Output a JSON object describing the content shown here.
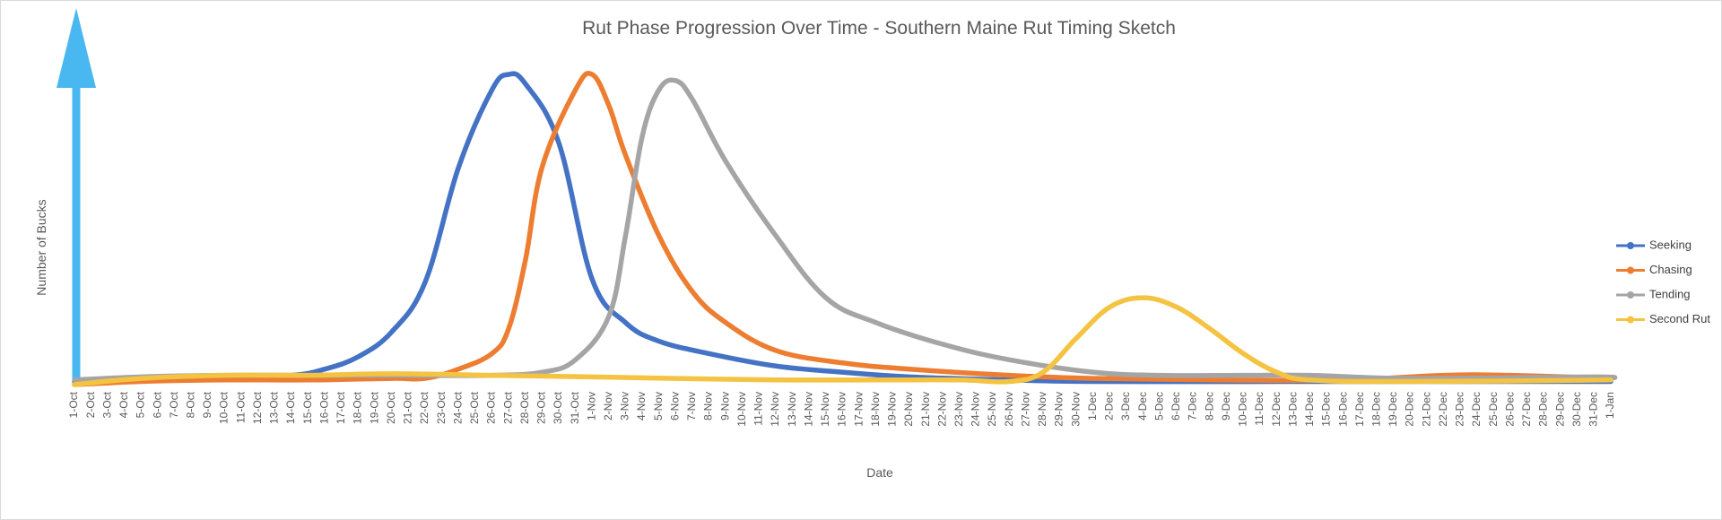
{
  "chart_data": {
    "type": "line",
    "title": "Rut Phase Progression Over Time - Southern Maine Rut Timing Sketch",
    "xlabel": "Date",
    "ylabel": "Number of Bucks",
    "y_axis": "no numeric ticks; drawn as an upward arrow",
    "legend_position": "right",
    "grid": false,
    "x_tick_labels": [
      "1-Oct",
      "2-Oct",
      "3-Oct",
      "4-Oct",
      "5-Oct",
      "6-Oct",
      "7-Oct",
      "8-Oct",
      "9-Oct",
      "10-Oct",
      "11-Oct",
      "12-Oct",
      "13-Oct",
      "14-Oct",
      "15-Oct",
      "16-Oct",
      "17-Oct",
      "18-Oct",
      "19-Oct",
      "20-Oct",
      "21-Oct",
      "22-Oct",
      "23-Oct",
      "24-Oct",
      "25-Oct",
      "26-Oct",
      "27-Oct",
      "28-Oct",
      "29-Oct",
      "30-Oct",
      "31-Oct",
      "1-Nov",
      "2-Nov",
      "3-Nov",
      "4-Nov",
      "5-Nov",
      "6-Nov",
      "7-Nov",
      "8-Nov",
      "9-Nov",
      "10-Nov",
      "11-Nov",
      "12-Nov",
      "13-Nov",
      "14-Nov",
      "15-Nov",
      "16-Nov",
      "17-Nov",
      "18-Nov",
      "19-Nov",
      "20-Nov",
      "21-Nov",
      "22-Nov",
      "23-Nov",
      "24-Nov",
      "25-Nov",
      "26-Nov",
      "27-Nov",
      "28-Nov",
      "29-Nov",
      "30-Nov",
      "1-Dec",
      "2-Dec",
      "3-Dec",
      "4-Dec",
      "5-Dec",
      "6-Dec",
      "7-Dec",
      "8-Dec",
      "9-Dec",
      "10-Dec",
      "11-Dec",
      "12-Dec",
      "13-Dec",
      "14-Dec",
      "15-Dec",
      "16-Dec",
      "17-Dec",
      "18-Dec",
      "19-Dec",
      "20-Dec",
      "21-Dec",
      "22-Dec",
      "23-Dec",
      "24-Dec",
      "25-Dec",
      "26-Dec",
      "27-Dec",
      "28-Dec",
      "29-Dec",
      "30-Dec",
      "31-Dec",
      "1-Jan"
    ],
    "ylim": [
      0,
      100
    ],
    "series": [
      {
        "name": "Seeking",
        "color": "#4472c4",
        "points": [
          [
            "1-Oct",
            1
          ],
          [
            "5-Oct",
            2
          ],
          [
            "10-Oct",
            2.5
          ],
          [
            "14-Oct",
            3
          ],
          [
            "16-Oct",
            5
          ],
          [
            "18-Oct",
            9
          ],
          [
            "20-Oct",
            17
          ],
          [
            "22-Oct",
            33
          ],
          [
            "24-Oct",
            70
          ],
          [
            "26-Oct",
            95
          ],
          [
            "27-Oct",
            100
          ],
          [
            "28-Oct",
            97
          ],
          [
            "30-Oct",
            78
          ],
          [
            "1-Nov",
            34
          ],
          [
            "3-Nov",
            20
          ],
          [
            "5-Nov",
            14
          ],
          [
            "8-Nov",
            10
          ],
          [
            "12-Nov",
            6
          ],
          [
            "16-Nov",
            4
          ],
          [
            "20-Nov",
            2.5
          ],
          [
            "26-Nov",
            1.5
          ],
          [
            "1-Dec",
            1
          ],
          [
            "12-Dec",
            1
          ],
          [
            "20-Dec",
            1
          ],
          [
            "1-Jan",
            1
          ]
        ]
      },
      {
        "name": "Chasing",
        "color": "#ed7d31",
        "points": [
          [
            "1-Oct",
            0
          ],
          [
            "5-Oct",
            1
          ],
          [
            "10-Oct",
            1.5
          ],
          [
            "15-Oct",
            1.5
          ],
          [
            "20-Oct",
            2
          ],
          [
            "22-Oct",
            2
          ],
          [
            "24-Oct",
            5
          ],
          [
            "26-Oct",
            10
          ],
          [
            "27-Oct",
            18
          ],
          [
            "28-Oct",
            40
          ],
          [
            "29-Oct",
            70
          ],
          [
            "31-Oct",
            95
          ],
          [
            "1-Nov",
            100
          ],
          [
            "2-Nov",
            90
          ],
          [
            "3-Nov",
            74
          ],
          [
            "5-Nov",
            48
          ],
          [
            "7-Nov",
            30
          ],
          [
            "9-Nov",
            20
          ],
          [
            "12-Nov",
            11
          ],
          [
            "16-Nov",
            7
          ],
          [
            "20-Nov",
            5
          ],
          [
            "26-Nov",
            3
          ],
          [
            "1-Dec",
            2
          ],
          [
            "8-Dec",
            1.5
          ],
          [
            "16-Dec",
            1.5
          ],
          [
            "22-Dec",
            3
          ],
          [
            "26-Dec",
            3
          ],
          [
            "1-Jan",
            2
          ]
        ]
      },
      {
        "name": "Tending",
        "color": "#a5a5a5",
        "points": [
          [
            "1-Oct",
            1.5
          ],
          [
            "5-Oct",
            2.5
          ],
          [
            "10-Oct",
            3
          ],
          [
            "15-Oct",
            3
          ],
          [
            "20-Oct",
            3
          ],
          [
            "26-Oct",
            3
          ],
          [
            "29-Oct",
            4
          ],
          [
            "31-Oct",
            8
          ],
          [
            "2-Nov",
            22
          ],
          [
            "3-Nov",
            48
          ],
          [
            "4-Nov",
            80
          ],
          [
            "5-Nov",
            95
          ],
          [
            "6-Nov",
            98
          ],
          [
            "7-Nov",
            92
          ],
          [
            "9-Nov",
            72
          ],
          [
            "12-Nov",
            48
          ],
          [
            "15-Nov",
            28
          ],
          [
            "18-Nov",
            20
          ],
          [
            "22-Nov",
            13
          ],
          [
            "26-Nov",
            8
          ],
          [
            "1-Dec",
            4
          ],
          [
            "5-Dec",
            3
          ],
          [
            "10-Dec",
            3
          ],
          [
            "14-Dec",
            3
          ],
          [
            "20-Dec",
            2
          ],
          [
            "31-Dec",
            2.5
          ],
          [
            "1-Jan",
            2
          ]
        ]
      },
      {
        "name": "Second Rut",
        "color": "#f5c342",
        "points": [
          [
            "1-Oct",
            0
          ],
          [
            "5-Oct",
            2
          ],
          [
            "10-Oct",
            3
          ],
          [
            "15-Oct",
            3
          ],
          [
            "20-Oct",
            3.5
          ],
          [
            "26-Oct",
            3
          ],
          [
            "1-Nov",
            2.5
          ],
          [
            "6-Nov",
            2
          ],
          [
            "12-Nov",
            1.5
          ],
          [
            "18-Nov",
            1.5
          ],
          [
            "23-Nov",
            1.5
          ],
          [
            "26-Nov",
            1
          ],
          [
            "28-Nov",
            4
          ],
          [
            "30-Nov",
            15
          ],
          [
            "2-Dec",
            25
          ],
          [
            "4-Dec",
            28
          ],
          [
            "6-Dec",
            25
          ],
          [
            "8-Dec",
            18
          ],
          [
            "10-Dec",
            10
          ],
          [
            "12-Dec",
            4
          ],
          [
            "14-Dec",
            1.5
          ],
          [
            "20-Dec",
            1
          ],
          [
            "1-Jan",
            1.5
          ]
        ]
      }
    ]
  }
}
